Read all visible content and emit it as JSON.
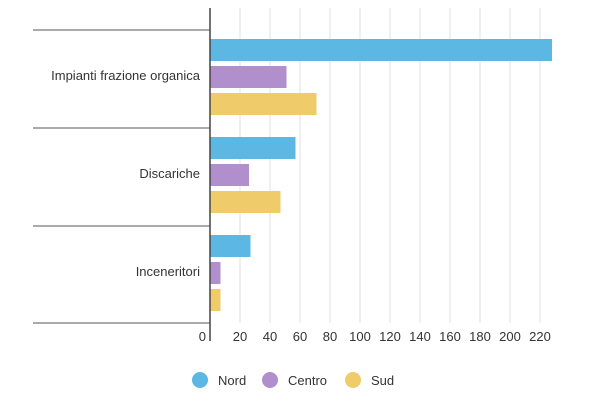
{
  "chart_data": {
    "type": "bar",
    "orientation": "horizontal",
    "categories": [
      "Impianti frazione organica",
      "Discariche",
      "Inceneritori"
    ],
    "series": [
      {
        "name": "Nord",
        "color": "#5cb8e3",
        "values": [
          228,
          57,
          27
        ]
      },
      {
        "name": "Centro",
        "color": "#b08fcc",
        "values": [
          51,
          26,
          7
        ]
      },
      {
        "name": "Sud",
        "color": "#f0cb6a",
        "values": [
          71,
          47,
          7
        ]
      }
    ],
    "xlim": [
      0,
      230
    ],
    "xticks": [
      0,
      20,
      40,
      60,
      80,
      100,
      120,
      140,
      160,
      180,
      200,
      220
    ],
    "grid": true,
    "legend_position": "bottom-center",
    "title": "",
    "xlabel": "",
    "ylabel": ""
  }
}
